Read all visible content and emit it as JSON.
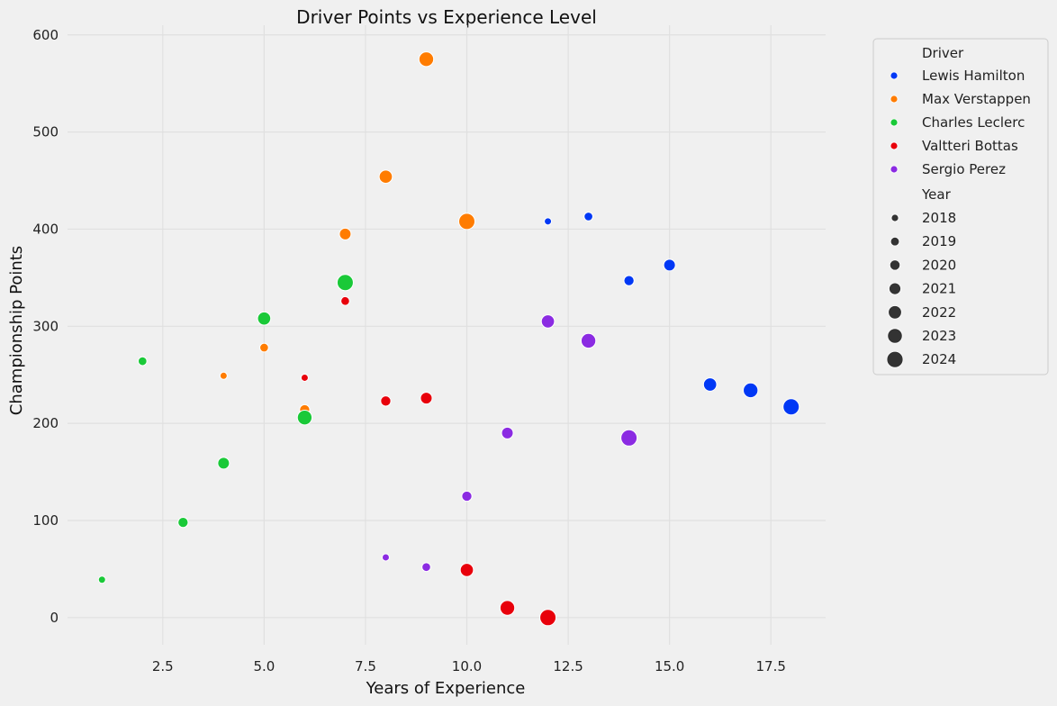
{
  "chart_data": {
    "type": "scatter",
    "title": "Driver Points vs Experience Level",
    "xlabel": "Years of Experience",
    "ylabel": "Championship Points",
    "xlim": [
      0.15,
      18.85
    ],
    "ylim": [
      -28,
      610
    ],
    "x_ticks": [
      2.5,
      5.0,
      7.5,
      10.0,
      12.5,
      15.0,
      17.5
    ],
    "x_tick_labels": [
      "2.5",
      "5.0",
      "7.5",
      "10.0",
      "12.5",
      "15.0",
      "17.5"
    ],
    "y_ticks": [
      0,
      100,
      200,
      300,
      400,
      500,
      600
    ],
    "y_tick_labels": [
      "0",
      "100",
      "200",
      "300",
      "400",
      "500",
      "600"
    ],
    "grid": true,
    "legend": {
      "placement": "outside-right",
      "hue_title": "Driver",
      "size_title": "Year",
      "size_entries": [
        "2018",
        "2019",
        "2020",
        "2021",
        "2022",
        "2023",
        "2024"
      ],
      "size_color": "#333333"
    },
    "series": [
      {
        "name": "Lewis Hamilton",
        "color": "#0038f5",
        "points": [
          {
            "x": 12,
            "y": 408,
            "year": 2018
          },
          {
            "x": 13,
            "y": 413,
            "year": 2019
          },
          {
            "x": 14,
            "y": 347,
            "year": 2020
          },
          {
            "x": 15,
            "y": 363,
            "year": 2021
          },
          {
            "x": 16,
            "y": 240,
            "year": 2022
          },
          {
            "x": 17,
            "y": 234,
            "year": 2023
          },
          {
            "x": 18,
            "y": 217,
            "year": 2024
          }
        ]
      },
      {
        "name": "Max Verstappen",
        "color": "#ff7c00",
        "points": [
          {
            "x": 4,
            "y": 249,
            "year": 2018
          },
          {
            "x": 5,
            "y": 278,
            "year": 2019
          },
          {
            "x": 6,
            "y": 214,
            "year": 2020
          },
          {
            "x": 7,
            "y": 395,
            "year": 2021
          },
          {
            "x": 8,
            "y": 454,
            "year": 2022
          },
          {
            "x": 9,
            "y": 575,
            "year": 2023
          },
          {
            "x": 10,
            "y": 408,
            "year": 2024
          }
        ]
      },
      {
        "name": "Charles Leclerc",
        "color": "#1ac938",
        "points": [
          {
            "x": 1,
            "y": 39,
            "year": 2018
          },
          {
            "x": 2,
            "y": 264,
            "year": 2019
          },
          {
            "x": 3,
            "y": 98,
            "year": 2020
          },
          {
            "x": 4,
            "y": 159,
            "year": 2021
          },
          {
            "x": 5,
            "y": 308,
            "year": 2022
          },
          {
            "x": 6,
            "y": 206,
            "year": 2023
          },
          {
            "x": 7,
            "y": 345,
            "year": 2024
          }
        ]
      },
      {
        "name": "Valtteri Bottas",
        "color": "#e8000b",
        "points": [
          {
            "x": 6,
            "y": 247,
            "year": 2018
          },
          {
            "x": 7,
            "y": 326,
            "year": 2019
          },
          {
            "x": 8,
            "y": 223,
            "year": 2020
          },
          {
            "x": 9,
            "y": 226,
            "year": 2021
          },
          {
            "x": 10,
            "y": 49,
            "year": 2022
          },
          {
            "x": 11,
            "y": 10,
            "year": 2023
          },
          {
            "x": 12,
            "y": 0,
            "year": 2024
          }
        ]
      },
      {
        "name": "Sergio Perez",
        "color": "#8b2be2",
        "points": [
          {
            "x": 8,
            "y": 62,
            "year": 2018
          },
          {
            "x": 9,
            "y": 52,
            "year": 2019
          },
          {
            "x": 10,
            "y": 125,
            "year": 2020
          },
          {
            "x": 11,
            "y": 190,
            "year": 2021
          },
          {
            "x": 12,
            "y": 305,
            "year": 2022
          },
          {
            "x": 13,
            "y": 285,
            "year": 2023
          },
          {
            "x": 14,
            "y": 185,
            "year": 2024
          }
        ]
      }
    ]
  }
}
